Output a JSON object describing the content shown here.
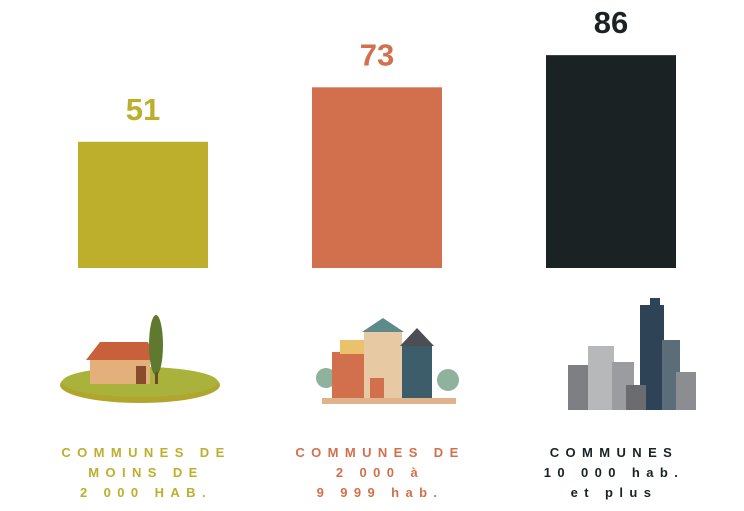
{
  "chart_data": {
    "type": "bar",
    "categories": [
      "COMMUNES DE\nMOINS DE\n2 000 HAB.",
      "COMMUNES DE\n2 000 à\n9 999 hab.",
      "COMMUNES\n10 000 hab.\net plus"
    ],
    "values": [
      51,
      73,
      86
    ],
    "colors": [
      "#bdae2b",
      "#d2704d",
      "#1a2224"
    ]
  }
}
